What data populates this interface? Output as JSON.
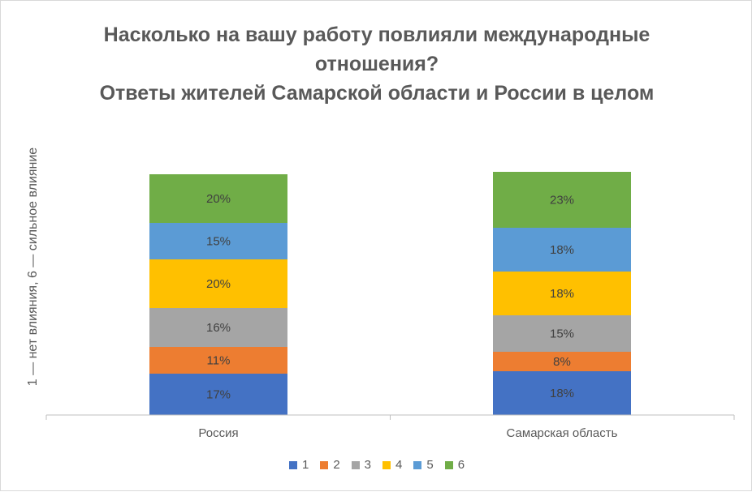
{
  "chart_data": {
    "type": "bar",
    "stacked": true,
    "title_lines": [
      "Насколько на вашу работу повлияли международные",
      "отношения?",
      "Ответы жителей Самарской области и России в целом"
    ],
    "ylabel": "1 — нет влияния, 6 — сильное влияние",
    "xlabel": "",
    "categories": [
      "Россия",
      "Самарская область"
    ],
    "series": [
      {
        "name": "1",
        "color": "#4472C4",
        "values": [
          17,
          18
        ],
        "labels": [
          "17%",
          "18%"
        ]
      },
      {
        "name": "2",
        "color": "#ED7D31",
        "values": [
          11,
          8
        ],
        "labels": [
          "11%",
          "8%"
        ]
      },
      {
        "name": "3",
        "color": "#A5A5A5",
        "values": [
          16,
          15
        ],
        "labels": [
          "16%",
          "15%"
        ]
      },
      {
        "name": "4",
        "color": "#FFC000",
        "values": [
          20,
          18
        ],
        "labels": [
          "20%",
          "18%"
        ]
      },
      {
        "name": "5",
        "color": "#5B9BD5",
        "values": [
          15,
          18
        ],
        "labels": [
          "15%",
          "18%"
        ]
      },
      {
        "name": "6",
        "color": "#70AD47",
        "values": [
          20,
          23
        ],
        "labels": [
          "20%",
          "23%"
        ]
      }
    ],
    "legend_position": "bottom",
    "grid": false
  }
}
